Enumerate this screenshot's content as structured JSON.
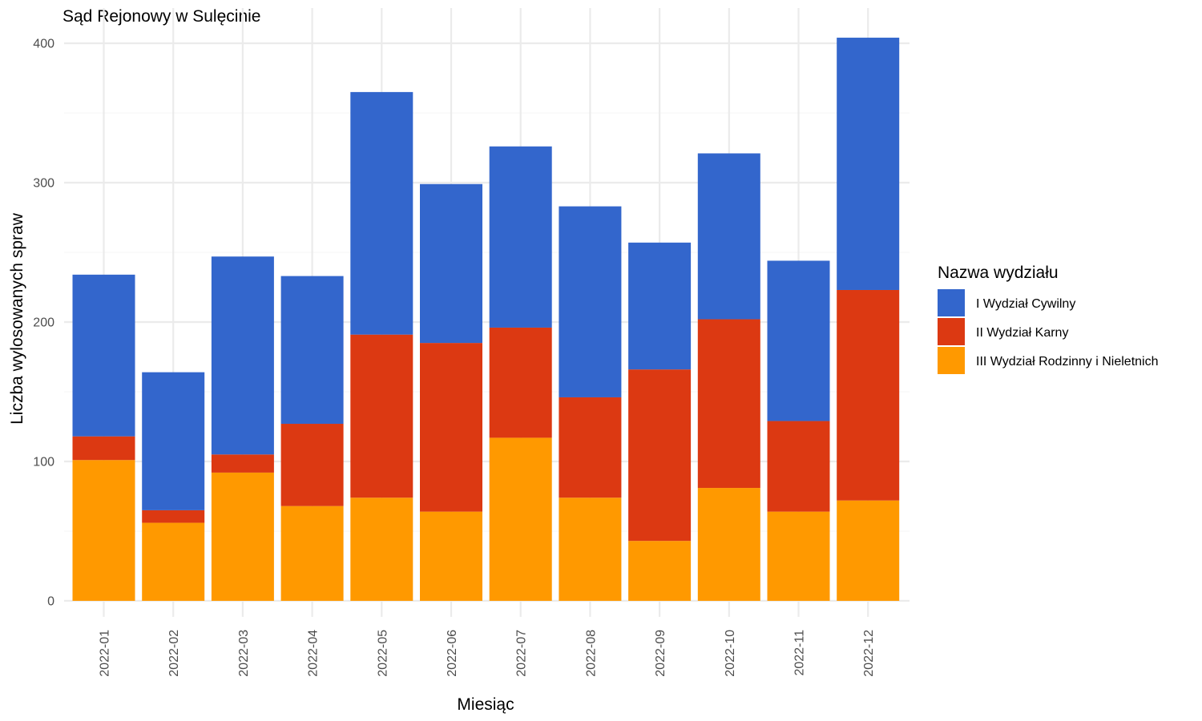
{
  "chart_data": {
    "type": "bar",
    "stacked": true,
    "title": "Sąd Rejonowy w Sulęcinie",
    "xlabel": "Miesiąc",
    "ylabel": "Liczba wylosowanych spraw",
    "ylim": [
      0,
      420
    ],
    "yticks": [
      0,
      100,
      200,
      300,
      400
    ],
    "grid": true,
    "legend_position": "right",
    "legend_title": "Nazwa wydziału",
    "categories": [
      "2022-01",
      "2022-02",
      "2022-03",
      "2022-04",
      "2022-05",
      "2022-06",
      "2022-07",
      "2022-08",
      "2022-09",
      "2022-10",
      "2022-11",
      "2022-12"
    ],
    "series": [
      {
        "name": "III Wydział Rodzinny i Nieletnich",
        "color": "#ff9900",
        "values": [
          101,
          56,
          92,
          68,
          74,
          64,
          117,
          74,
          43,
          81,
          64,
          72
        ]
      },
      {
        "name": "II Wydział Karny",
        "color": "#dc3912",
        "values": [
          17,
          9,
          13,
          59,
          117,
          121,
          79,
          72,
          123,
          121,
          65,
          151
        ]
      },
      {
        "name": "I Wydział Cywilny",
        "color": "#3366cc",
        "values": [
          116,
          99,
          142,
          106,
          174,
          114,
          130,
          137,
          91,
          119,
          115,
          181
        ]
      }
    ],
    "legend_order": [
      "I Wydział Cywilny",
      "II Wydział Karny",
      "III Wydział Rodzinny i Nieletnich"
    ]
  }
}
